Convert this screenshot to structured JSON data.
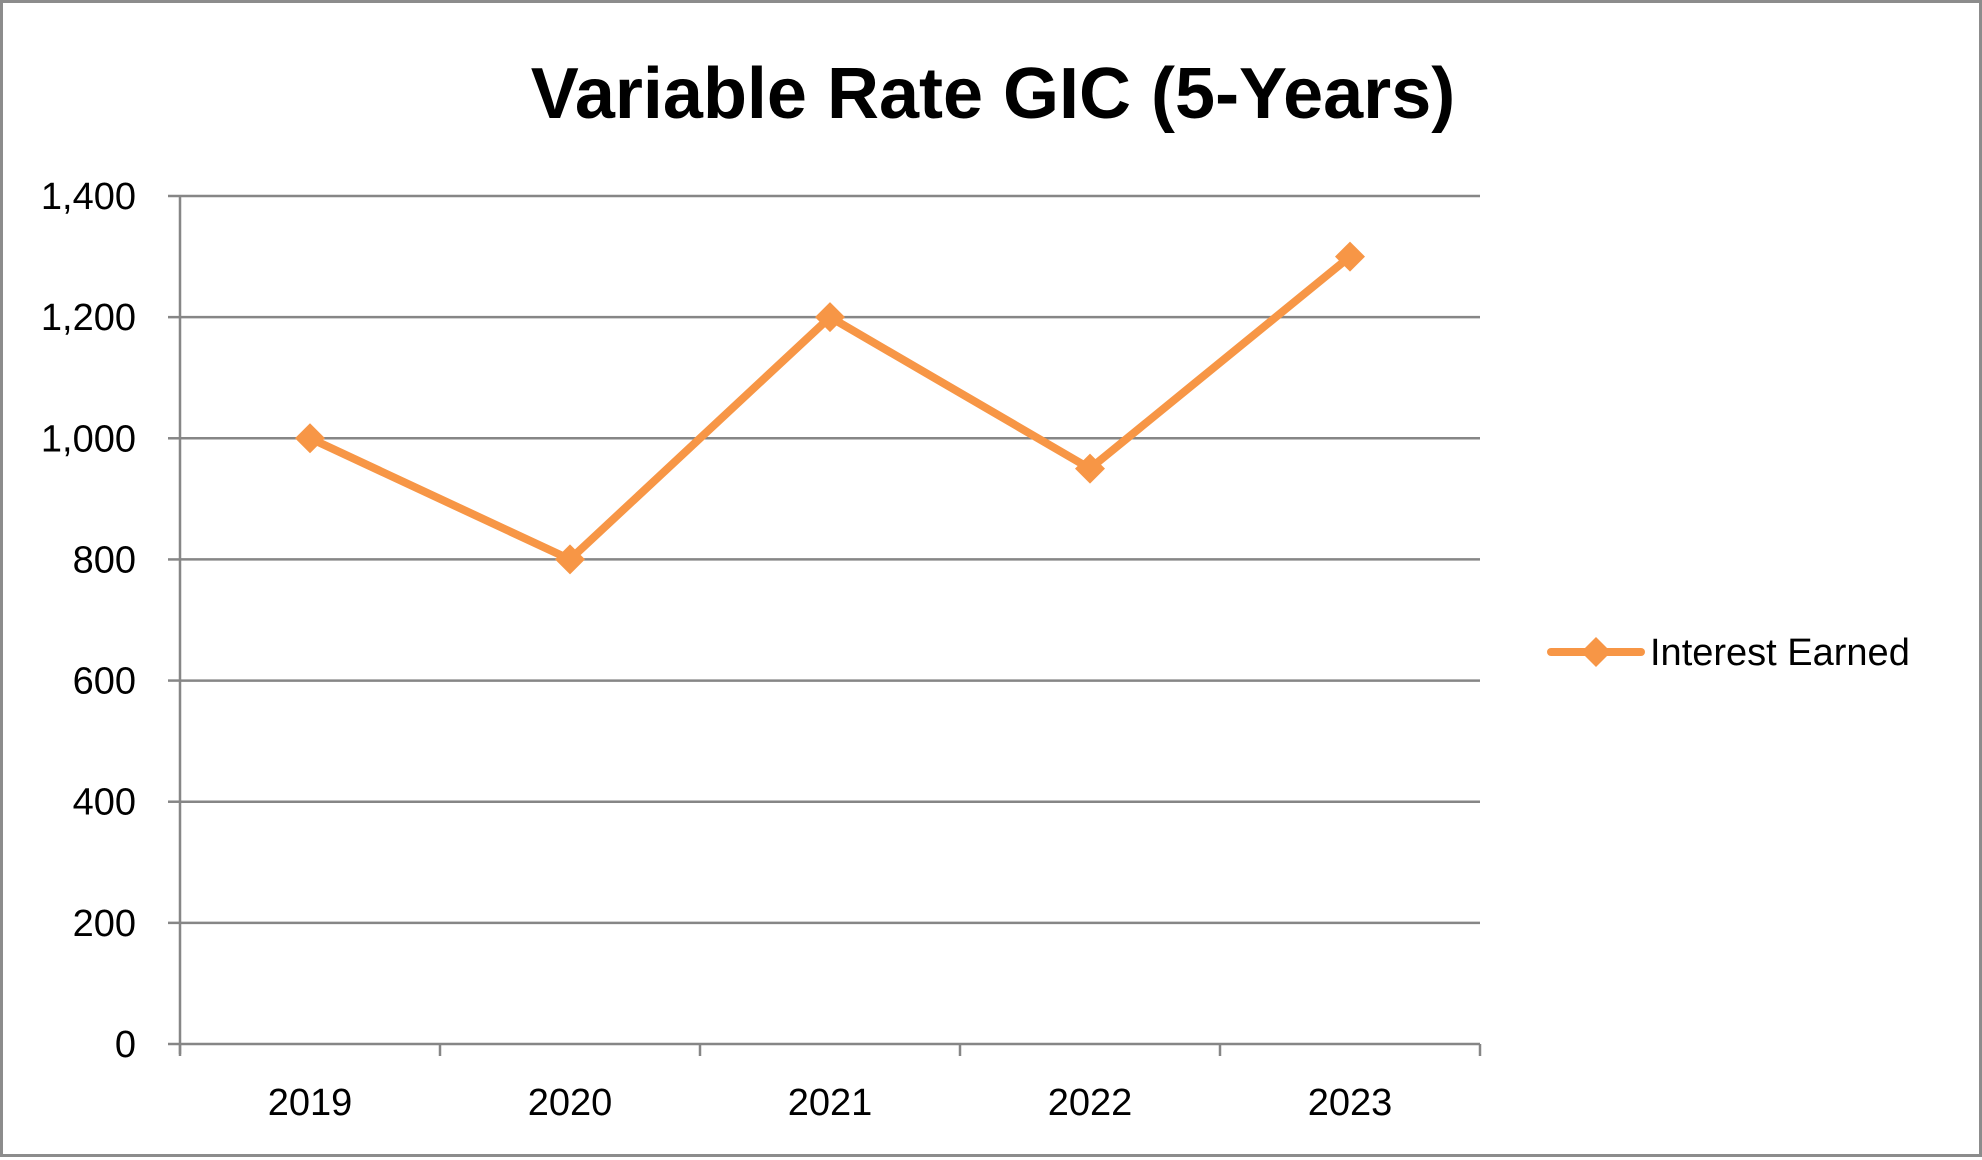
{
  "chart_data": {
    "type": "line",
    "title": "Variable Rate GIC (5-Years)",
    "xlabel": "",
    "ylabel": "",
    "categories": [
      "2019",
      "2020",
      "2021",
      "2022",
      "2023"
    ],
    "series": [
      {
        "name": "Interest Earned",
        "values": [
          1000,
          800,
          1200,
          950,
          1300
        ],
        "color": "#f79646",
        "marker": "diamond"
      }
    ],
    "ylim": [
      0,
      1400
    ],
    "yticks": [
      0,
      200,
      400,
      600,
      800,
      1000,
      1200,
      1400
    ],
    "ytick_labels": [
      "0",
      "200",
      "400",
      "600",
      "800",
      "1,000",
      "1,200",
      "1,400"
    ],
    "grid": "horizontal",
    "legend_position": "right",
    "colors": {
      "grid": "#868686",
      "axis": "#868686",
      "frame": "#8c8c8c"
    }
  }
}
